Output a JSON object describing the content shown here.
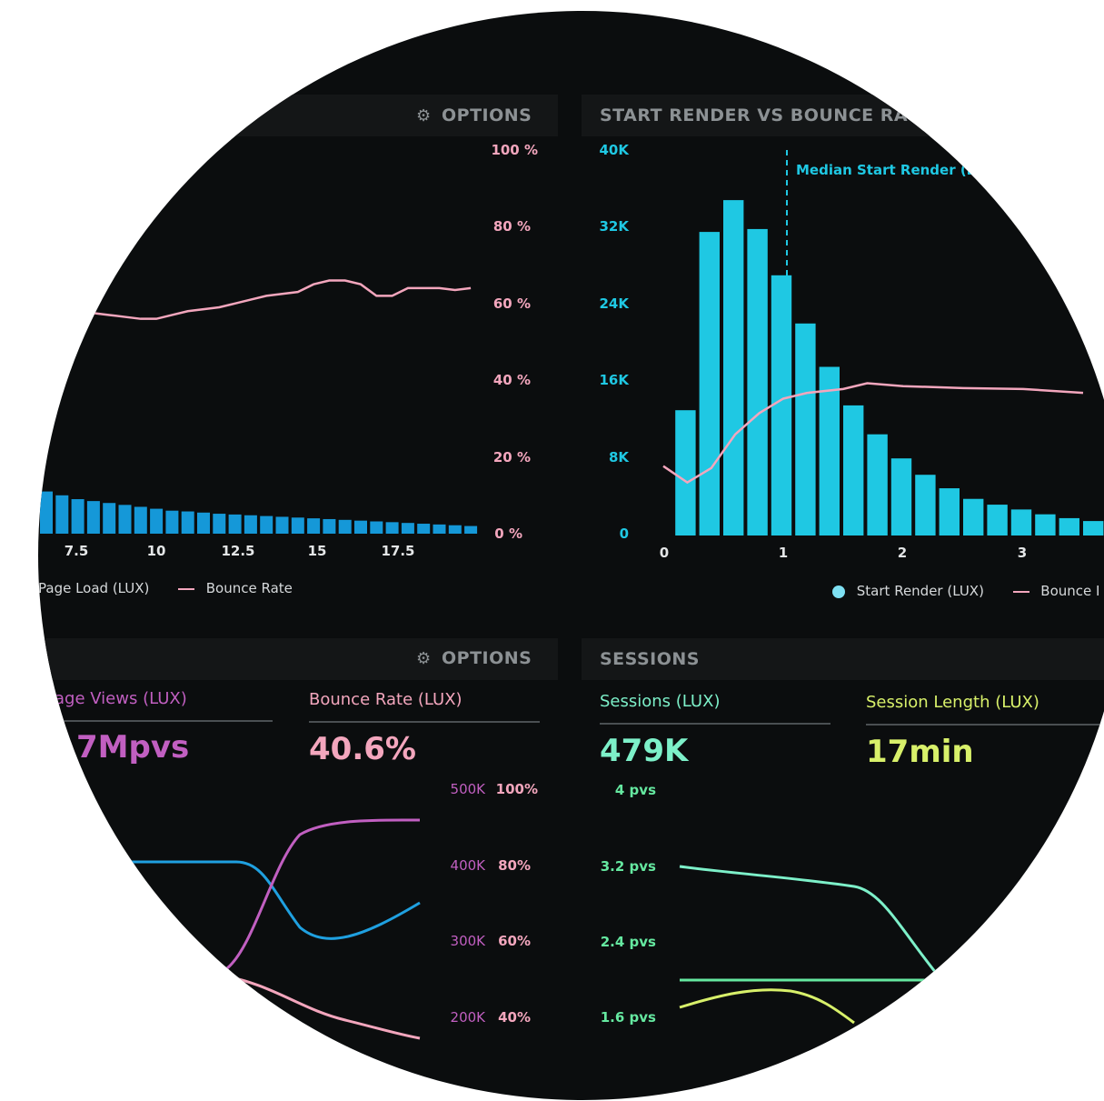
{
  "colors": {
    "background": "#0b0d0e",
    "header": "#141617",
    "header_text": "#8c9194",
    "cyan": "#1fc8e3",
    "pink_line": "#f3a6bd",
    "blue_bars": "#1598d8",
    "magenta": "#c15fc1",
    "blue_line": "#1fa0e0",
    "teal": "#7df0c9",
    "lime": "#d8f06a",
    "green_line": "#65e8a0"
  },
  "top_left": {
    "options_icon": "gear-icon",
    "options_label": "OPTIONS",
    "legend_series_1": "Page Load (LUX)",
    "legend_series_2": "Bounce Rate",
    "chart_data": {
      "type": "bar",
      "x_ticks": [
        "7.5",
        "10",
        "12.5",
        "15",
        "17.5"
      ],
      "y_ticks": [
        "100 %",
        "80 %",
        "60 %",
        "40 %",
        "20 %",
        "0 %"
      ],
      "ylim": [
        0,
        100
      ],
      "bars": [
        11,
        10,
        9,
        8.5,
        8,
        7.5,
        7,
        6.5,
        6,
        5.8,
        5.5,
        5.2,
        5,
        4.8,
        4.6,
        4.4,
        4.2,
        4,
        3.8,
        3.6,
        3.4,
        3.2,
        3,
        2.8,
        2.6,
        2.4,
        2.2,
        2
      ],
      "line": [
        58,
        58,
        58,
        57.5,
        57,
        56.5,
        56,
        56,
        57,
        58,
        58.5,
        59,
        60,
        61,
        62,
        62.5,
        63,
        65,
        66,
        66,
        65,
        62,
        62,
        64,
        64,
        64,
        63.5,
        64
      ]
    }
  },
  "top_right": {
    "title": "START RENDER VS BOUNCE RA",
    "annotation": "Median Start Render (L",
    "legend_series_1": "Start Render (LUX)",
    "legend_series_2": "Bounce I",
    "chart_data": {
      "type": "bar",
      "x_ticks": [
        "0",
        "1",
        "2",
        "3"
      ],
      "y_ticks": [
        "40K",
        "32K",
        "24K",
        "16K",
        "8K",
        "0"
      ],
      "ylim": [
        0,
        40000
      ],
      "bars": [
        13000,
        31500,
        34800,
        31800,
        27000,
        22000,
        17500,
        13500,
        10500,
        8000,
        6300,
        4900,
        3800,
        3200,
        2700,
        2200,
        1800,
        1500
      ],
      "bar_width_x": 0.2,
      "bar_start_x": 0.1,
      "median_x": 1.0,
      "line_ylim_note": "bounce rate on secondary scale",
      "line": [
        [
          0.0,
          7200
        ],
        [
          0.2,
          5500
        ],
        [
          0.4,
          7000
        ],
        [
          0.6,
          10500
        ],
        [
          0.8,
          12700
        ],
        [
          1.0,
          14200
        ],
        [
          1.2,
          14800
        ],
        [
          1.5,
          15200
        ],
        [
          1.7,
          15800
        ],
        [
          2.0,
          15500
        ],
        [
          2.5,
          15300
        ],
        [
          3.0,
          15200
        ],
        [
          3.5,
          14800
        ]
      ]
    }
  },
  "bottom_left": {
    "options_icon": "gear-icon",
    "options_label": "OPTIONS",
    "metric_1_label": "age Views (LUX)",
    "metric_1_value": "7Mpvs",
    "metric_2_label": "Bounce Rate (LUX)",
    "metric_2_value": "40.6%",
    "y_ticks_left": [
      "500K",
      "400K",
      "300K",
      "200K"
    ],
    "y_ticks_right": [
      "100%",
      "80%",
      "60%",
      "40%"
    ]
  },
  "bottom_right": {
    "title": "SESSIONS",
    "metric_1_label": "Sessions (LUX)",
    "metric_1_value": "479K",
    "metric_2_label": "Session Length (LUX)",
    "metric_2_value": "17min",
    "y_ticks": [
      "4 pvs",
      "3.2 pvs",
      "2.4 pvs",
      "1.6 pvs"
    ]
  }
}
